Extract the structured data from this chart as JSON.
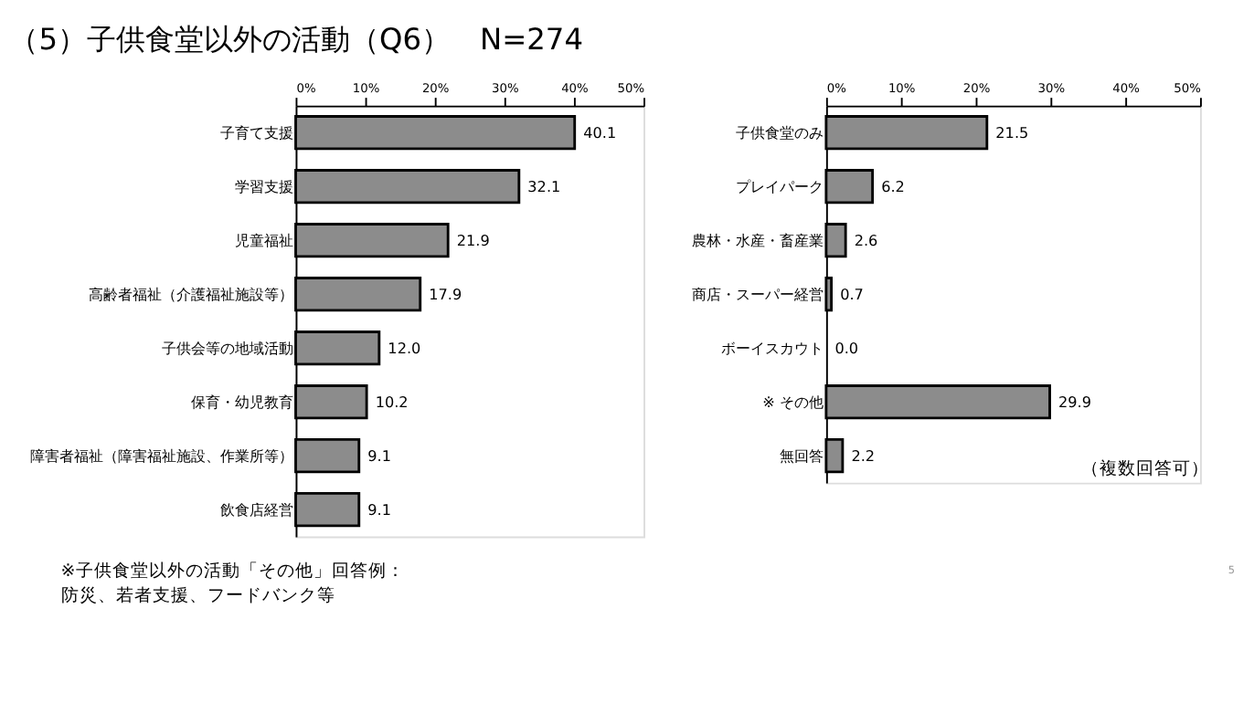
{
  "chart_data": [
    {
      "type": "bar",
      "orientation": "horizontal",
      "title": "（5）子供食堂以外の活動（Q6）　N=274",
      "categories": [
        "子育て支援",
        "学習支援",
        "児童福祉",
        "高齢者福祉（介護福祉施設等）",
        "子供会等の地域活動",
        "保育・幼児教育",
        "障害者福祉（障害福祉施設、作業所等）",
        "飲食店経営"
      ],
      "values": [
        40.1,
        32.1,
        21.9,
        17.9,
        12.0,
        10.2,
        9.1,
        9.1
      ],
      "value_labels": [
        "40.1",
        "32.1",
        "21.9",
        "17.9",
        "12.0",
        "10.2",
        "9.1",
        "9.1"
      ],
      "color": "#8c8c8c",
      "xlim": [
        0,
        50
      ],
      "xticks": [
        {
          "value": 0,
          "label": "0%"
        },
        {
          "value": 10,
          "label": "10%"
        },
        {
          "value": 20,
          "label": "20%"
        },
        {
          "value": 30,
          "label": "30%"
        },
        {
          "value": 40,
          "label": "40%"
        },
        {
          "value": 50,
          "label": "50%"
        }
      ],
      "grid": false,
      "annotations": [
        "※子供食堂以外の活動「その他」回答例：",
        "　防災、若者支援、フードバンク等"
      ]
    },
    {
      "type": "bar",
      "orientation": "horizontal",
      "categories": [
        "子供食堂のみ",
        "プレイパーク",
        "農林・水産・畜産業",
        "商店・スーパー経営",
        "ボーイスカウト",
        "※ その他",
        "無回答"
      ],
      "values": [
        21.5,
        6.2,
        2.6,
        0.7,
        0.0,
        29.9,
        2.2
      ],
      "value_labels": [
        "21.5",
        "6.2",
        "2.6",
        "0.7",
        "0.0",
        "29.9",
        "2.2"
      ],
      "color": "#8c8c8c",
      "xlim": [
        0,
        50
      ],
      "xticks": [
        {
          "value": 0,
          "label": "0%"
        },
        {
          "value": 10,
          "label": "10%"
        },
        {
          "value": 20,
          "label": "20%"
        },
        {
          "value": 30,
          "label": "30%"
        },
        {
          "value": 40,
          "label": "40%"
        },
        {
          "value": 50,
          "label": "50%"
        }
      ],
      "grid": false,
      "annotations": [
        "（複数回答可）",
        "5"
      ]
    }
  ]
}
